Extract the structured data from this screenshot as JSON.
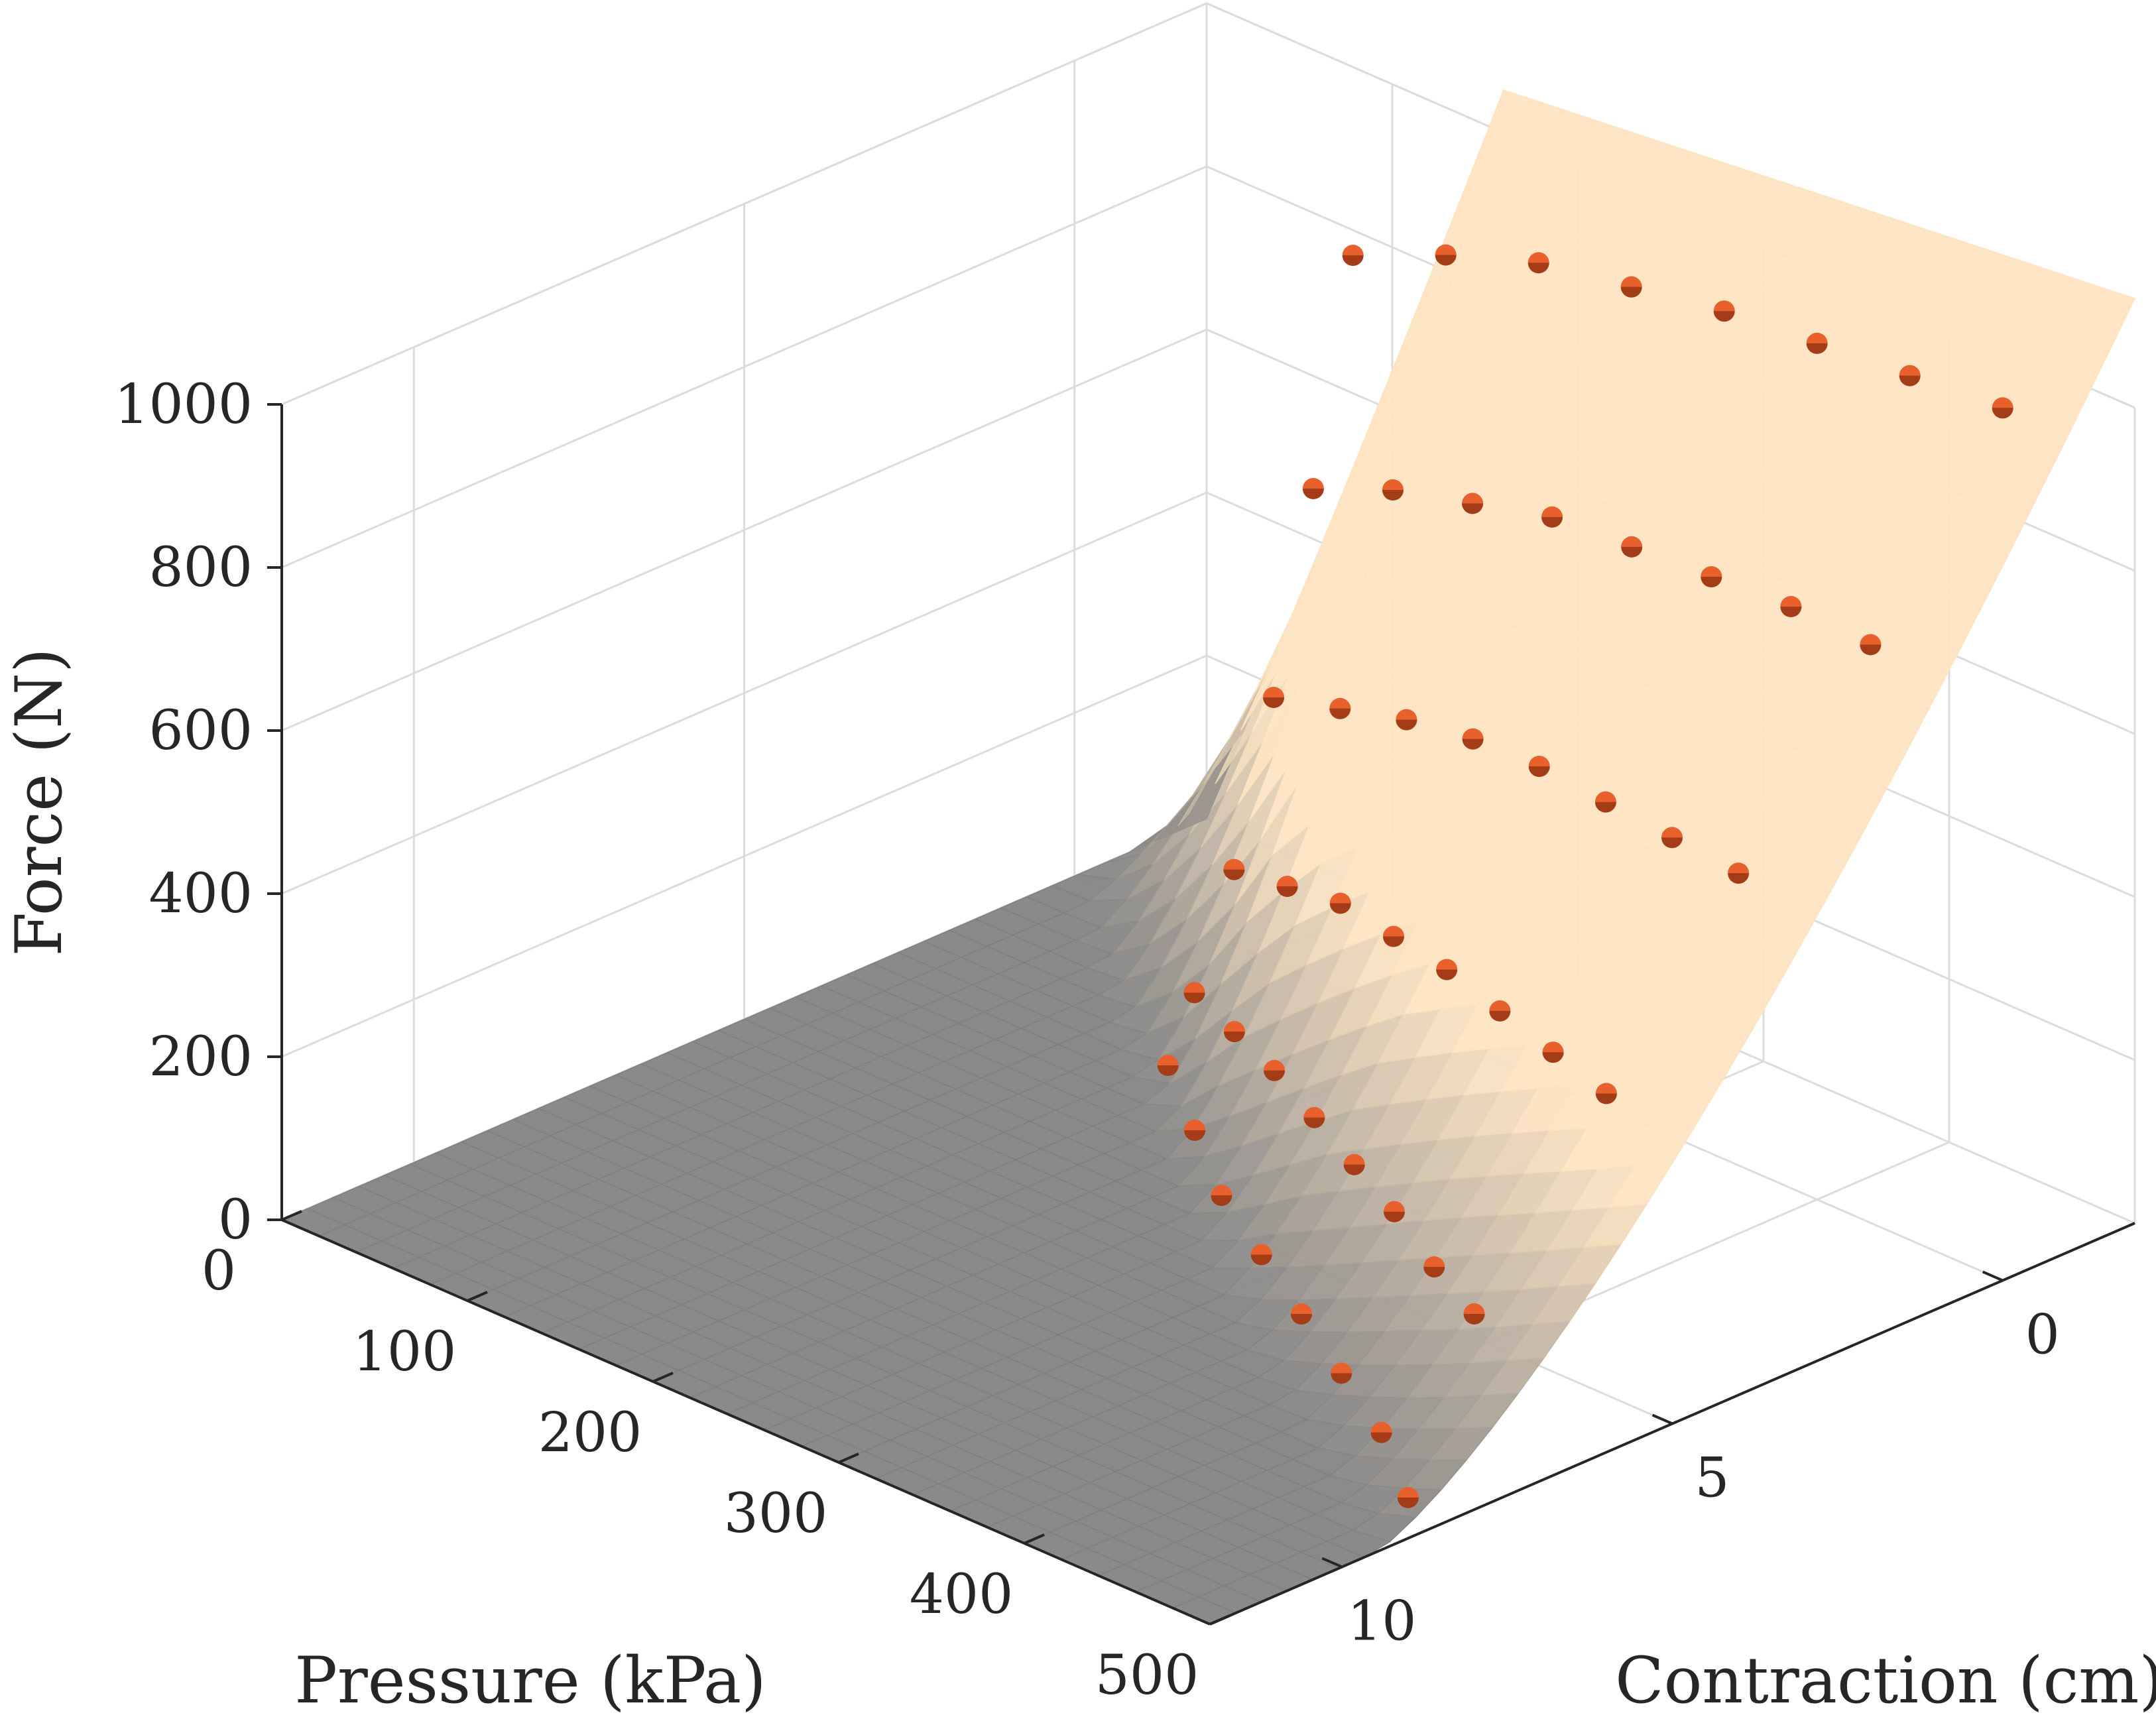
{
  "chart_data": {
    "type": "surface+scatter",
    "xlabel": "Contraction (cm)",
    "ylabel": "Pressure (kPa)",
    "zlabel": "Force (N)",
    "x_ticks": [
      "0",
      "5",
      "10"
    ],
    "y_ticks": [
      "0",
      "100",
      "200",
      "300",
      "400",
      "500"
    ],
    "z_ticks": [
      "0",
      "200",
      "400",
      "600",
      "800",
      "1000"
    ],
    "xlim": [
      -2,
      12
    ],
    "ylim": [
      0,
      500
    ],
    "zlim": [
      0,
      1000
    ],
    "grid": true,
    "colors": {
      "surface_low": "#808080",
      "surface_high": "#fde3c0",
      "markers": "#e8602c",
      "marker_dark": "#6b1f08",
      "grid": "#dcdcdc",
      "axes": "#262626"
    },
    "model": {
      "pressures": [
        150,
        200,
        250,
        300,
        350,
        400,
        450,
        500
      ],
      "pressure_unit_note": "",
      "max_contraction": [
        3.0,
        4.2,
        5.2,
        6.2,
        7.0,
        7.8,
        8.6,
        9.5
      ]
    },
    "measurements": [
      {
        "pressure": 150,
        "contraction": [
          0.0,
          0.6,
          1.2,
          1.8,
          2.4,
          2.8
        ],
        "force": [
          910,
          645,
          410,
          220,
          90,
          15
        ]
      },
      {
        "pressure": 200,
        "contraction": [
          0.0,
          0.8,
          1.6,
          2.4,
          3.2,
          3.8
        ],
        "force": [
          960,
          700,
          460,
          270,
          120,
          20
        ]
      },
      {
        "pressure": 250,
        "contraction": [
          0.0,
          1.0,
          2.0,
          3.0,
          4.0,
          4.8
        ],
        "force": [
          1000,
          740,
          510,
          320,
          150,
          25
        ]
      },
      {
        "pressure": 300,
        "contraction": [
          0.0,
          1.2,
          2.4,
          3.6,
          4.8,
          5.6
        ],
        "force": [
          1020,
          780,
          550,
          350,
          170,
          30
        ]
      },
      {
        "pressure": 350,
        "contraction": [
          0.0,
          1.4,
          2.8,
          4.2,
          5.6,
          6.4
        ],
        "force": [
          1040,
          800,
          580,
          380,
          190,
          35
        ]
      },
      {
        "pressure": 400,
        "contraction": [
          0.0,
          1.6,
          3.2,
          4.8,
          6.4,
          7.2
        ],
        "force": [
          1050,
          820,
          600,
          400,
          210,
          40
        ]
      },
      {
        "pressure": 450,
        "contraction": [
          0.0,
          1.8,
          3.6,
          5.4,
          7.2,
          8.0
        ],
        "force": [
          1060,
          840,
          620,
          420,
          220,
          45
        ]
      },
      {
        "pressure": 500,
        "contraction": [
          0.0,
          2.0,
          4.0,
          6.0,
          8.0,
          9.0
        ],
        "force": [
          1070,
          850,
          640,
          440,
          240,
          50
        ]
      }
    ]
  }
}
